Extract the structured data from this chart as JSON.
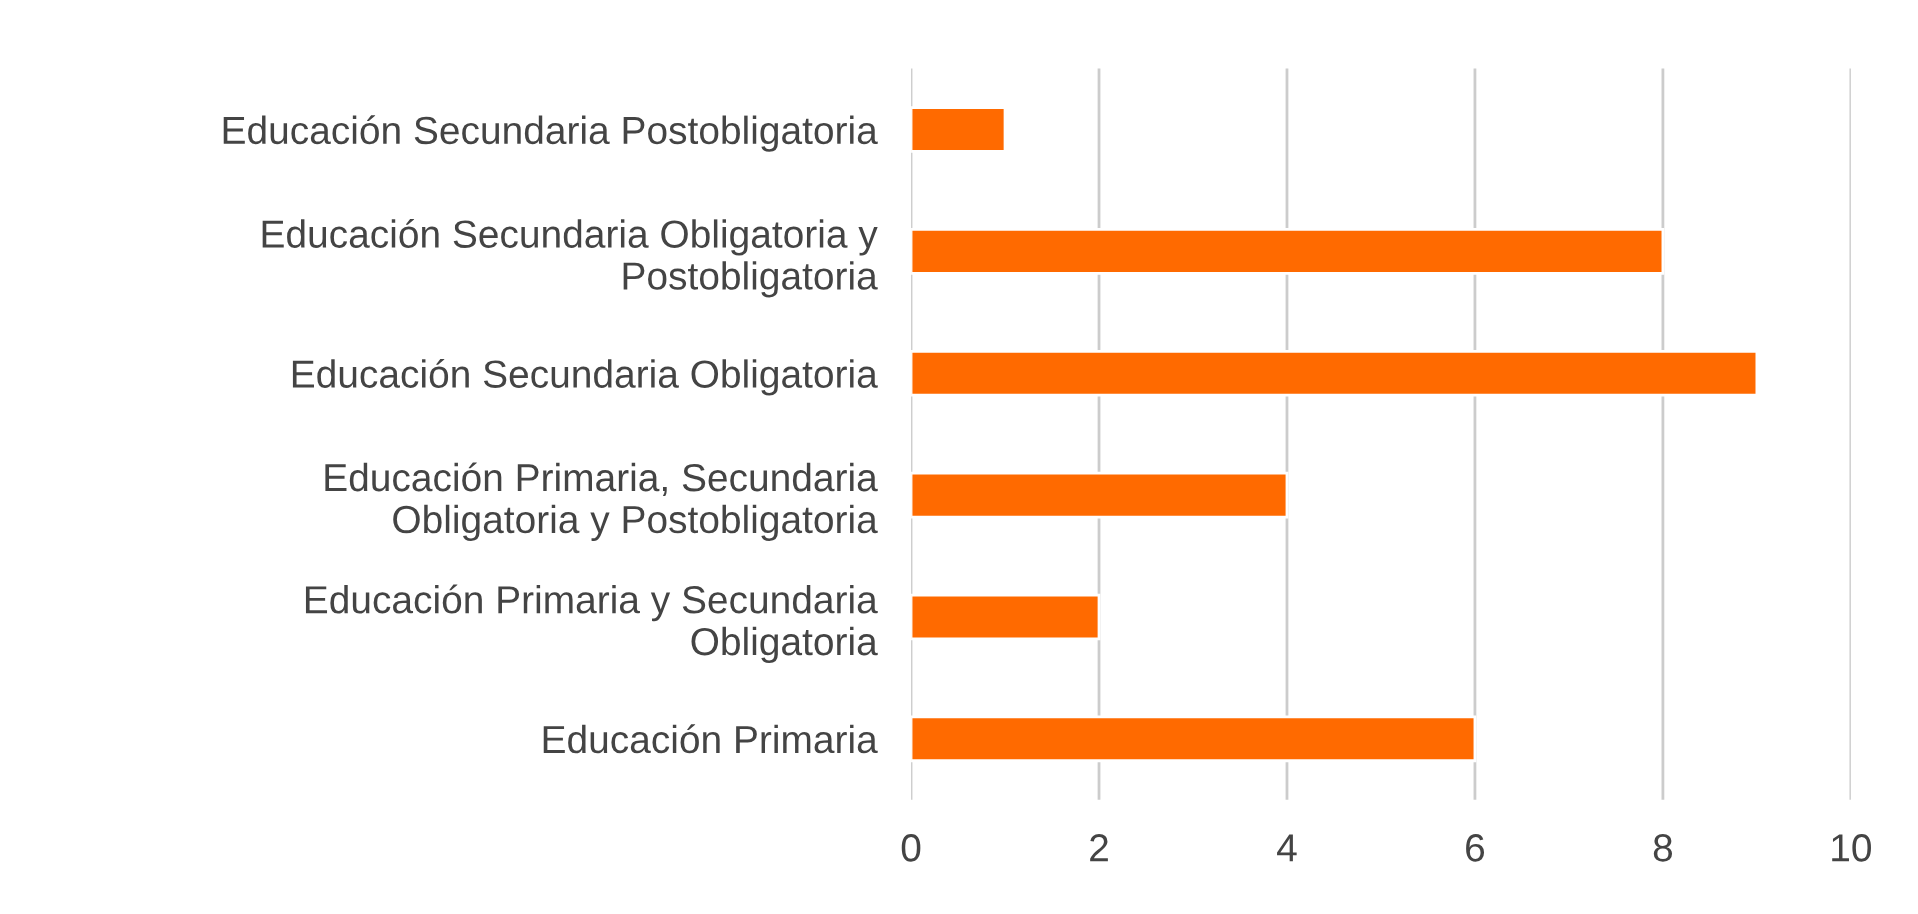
{
  "chart_data": {
    "type": "bar",
    "orientation": "horizontal",
    "categories": [
      "Educación Secundaria Postobligatoria",
      "Educación Secundaria Obligatoria y\nPostobligatoria",
      "Educación Secundaria Obligatoria",
      "Educación Primaria, Secundaria\nObligatoria y Postobligatoria",
      "Educación Primaria y Secundaria\nObligatoria",
      "Educación Primaria"
    ],
    "values": [
      1,
      8,
      9,
      4,
      2,
      6
    ],
    "color": "#ff6a00",
    "xlim": [
      0,
      10
    ],
    "xticks": [
      0,
      2,
      4,
      6,
      8,
      10
    ],
    "grid": "x"
  }
}
